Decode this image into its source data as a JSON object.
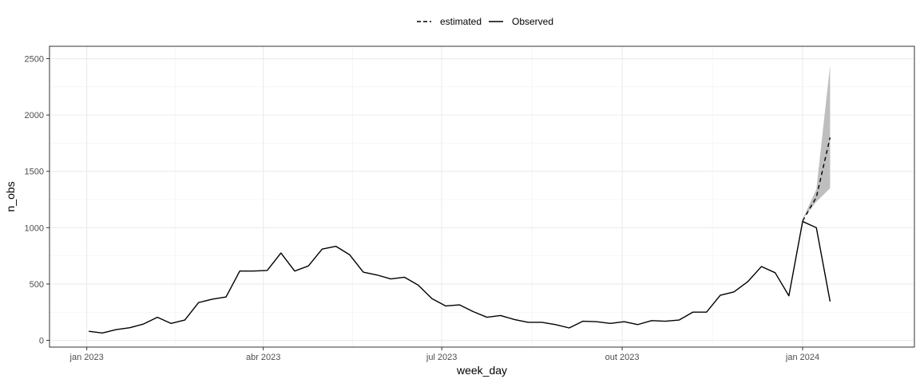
{
  "chart_data": {
    "type": "line",
    "title": "",
    "xlabel": "week_day",
    "ylabel": "n_obs",
    "x_ticks": [
      {
        "date": "2023-01-01",
        "label": "jan 2023"
      },
      {
        "date": "2023-04-01",
        "label": "abr 2023"
      },
      {
        "date": "2023-07-01",
        "label": "jul 2023"
      },
      {
        "date": "2023-10-01",
        "label": "out 2023"
      },
      {
        "date": "2024-01-01",
        "label": "jan 2024"
      }
    ],
    "y_ticks": [
      0,
      500,
      1000,
      1500,
      2000,
      2500
    ],
    "xlim": [
      "2022-12-13",
      "2024-02-27"
    ],
    "ylim": [
      -60,
      2610
    ],
    "grid": true,
    "legend_position": "top",
    "legend": [
      {
        "label": "estimated",
        "linetype": "dashed"
      },
      {
        "label": "Observed",
        "linetype": "solid"
      }
    ],
    "series": [
      {
        "name": "Observed",
        "linetype": "solid",
        "color": "#000000",
        "points": [
          [
            "2023-01-02",
            80
          ],
          [
            "2023-01-09",
            65
          ],
          [
            "2023-01-16",
            95
          ],
          [
            "2023-01-23",
            112
          ],
          [
            "2023-01-30",
            145
          ],
          [
            "2023-02-06",
            205
          ],
          [
            "2023-02-13",
            150
          ],
          [
            "2023-02-20",
            180
          ],
          [
            "2023-02-27",
            335
          ],
          [
            "2023-03-06",
            365
          ],
          [
            "2023-03-13",
            385
          ],
          [
            "2023-03-20",
            615
          ],
          [
            "2023-03-27",
            615
          ],
          [
            "2023-04-03",
            620
          ],
          [
            "2023-04-10",
            775
          ],
          [
            "2023-04-17",
            615
          ],
          [
            "2023-04-24",
            660
          ],
          [
            "2023-05-01",
            810
          ],
          [
            "2023-05-08",
            835
          ],
          [
            "2023-05-15",
            760
          ],
          [
            "2023-05-22",
            605
          ],
          [
            "2023-05-29",
            580
          ],
          [
            "2023-06-05",
            545
          ],
          [
            "2023-06-12",
            560
          ],
          [
            "2023-06-19",
            490
          ],
          [
            "2023-06-26",
            370
          ],
          [
            "2023-07-03",
            305
          ],
          [
            "2023-07-10",
            315
          ],
          [
            "2023-07-17",
            255
          ],
          [
            "2023-07-24",
            205
          ],
          [
            "2023-07-31",
            220
          ],
          [
            "2023-08-07",
            185
          ],
          [
            "2023-08-14",
            160
          ],
          [
            "2023-08-21",
            160
          ],
          [
            "2023-08-28",
            140
          ],
          [
            "2023-09-04",
            110
          ],
          [
            "2023-09-11",
            170
          ],
          [
            "2023-09-18",
            165
          ],
          [
            "2023-09-25",
            150
          ],
          [
            "2023-10-02",
            165
          ],
          [
            "2023-10-09",
            140
          ],
          [
            "2023-10-16",
            175
          ],
          [
            "2023-10-23",
            170
          ],
          [
            "2023-10-30",
            180
          ],
          [
            "2023-11-06",
            250
          ],
          [
            "2023-11-13",
            250
          ],
          [
            "2023-11-20",
            400
          ],
          [
            "2023-11-27",
            430
          ],
          [
            "2023-12-04",
            520
          ],
          [
            "2023-12-11",
            655
          ],
          [
            "2023-12-18",
            600
          ],
          [
            "2023-12-25",
            395
          ],
          [
            "2024-01-01",
            1055
          ],
          [
            "2024-01-08",
            1000
          ],
          [
            "2024-01-15",
            345
          ]
        ]
      },
      {
        "name": "estimated",
        "linetype": "dashed",
        "color": "#000000",
        "points": [
          [
            "2024-01-01",
            1060
          ],
          [
            "2024-01-08",
            1270
          ],
          [
            "2024-01-15",
            1800
          ]
        ]
      }
    ],
    "ribbon": {
      "fill": "#bebebe",
      "points": [
        [
          "2024-01-01",
          1075,
          1075
        ],
        [
          "2024-01-08",
          1230,
          1340
        ],
        [
          "2024-01-15",
          1350,
          2440
        ]
      ]
    }
  }
}
